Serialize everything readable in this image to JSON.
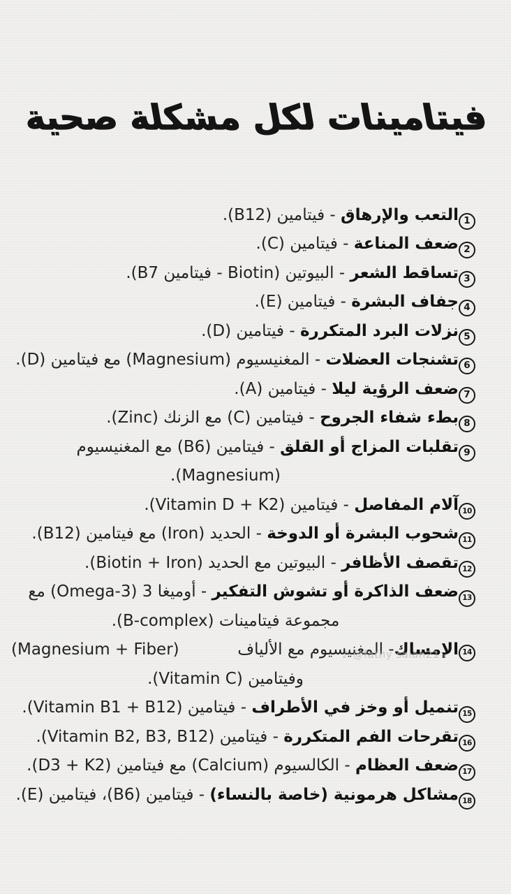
{
  "page": {
    "title": "فيتامينات لكل مشكلة صحية",
    "watermark": "♪ @fathy salah21",
    "colors": {
      "paper": "#f0efed",
      "ink": "#1a1a1a"
    }
  },
  "items": [
    {
      "n": "1",
      "lines": [
        {
          "align": "right",
          "segments": [
            {
              "bold": true,
              "text": "التعب والإرهاق"
            },
            {
              "bold": false,
              "text": " - فيتامين (B12)."
            }
          ]
        }
      ]
    },
    {
      "n": "2",
      "lines": [
        {
          "align": "right",
          "segments": [
            {
              "bold": true,
              "text": "ضعف المناعة"
            },
            {
              "bold": false,
              "text": " - فيتامين (C)."
            }
          ]
        }
      ]
    },
    {
      "n": "3",
      "lines": [
        {
          "align": "right",
          "segments": [
            {
              "bold": true,
              "text": "تساقط الشعر"
            },
            {
              "bold": false,
              "text": " - البيوتين (Biotin - فيتامين B7)."
            }
          ]
        }
      ]
    },
    {
      "n": "4",
      "lines": [
        {
          "align": "right",
          "segments": [
            {
              "bold": true,
              "text": "جفاف البشرة"
            },
            {
              "bold": false,
              "text": " - فيتامين (E)."
            }
          ]
        }
      ]
    },
    {
      "n": "5",
      "lines": [
        {
          "align": "right",
          "segments": [
            {
              "bold": true,
              "text": "نزلات البرد المتكررة"
            },
            {
              "bold": false,
              "text": " - فيتامين (D)."
            }
          ]
        }
      ]
    },
    {
      "n": "6",
      "lines": [
        {
          "align": "right",
          "segments": [
            {
              "bold": true,
              "text": "تشنجات العضلات"
            },
            {
              "bold": false,
              "text": " - المغنيسيوم (Magnesium) مع فيتامين (D)."
            }
          ]
        }
      ]
    },
    {
      "n": "7",
      "lines": [
        {
          "align": "right",
          "segments": [
            {
              "bold": true,
              "text": "ضعف الرؤية ليلا"
            },
            {
              "bold": false,
              "text": " - فيتامين (A)."
            }
          ]
        }
      ]
    },
    {
      "n": "8",
      "lines": [
        {
          "align": "right",
          "segments": [
            {
              "bold": true,
              "text": "بطء شفاء الجروح"
            },
            {
              "bold": false,
              "text": " - فيتامين (C) مع الزنك (Zinc)."
            }
          ]
        }
      ]
    },
    {
      "n": "9",
      "lines": [
        {
          "align": "right",
          "segments": [
            {
              "bold": true,
              "text": "تقلبات المزاج أو القلق"
            },
            {
              "bold": false,
              "text": " - فيتامين (B6) مع المغنيسيوم"
            }
          ]
        },
        {
          "align": "center",
          "segments": [
            {
              "bold": false,
              "text": "(Magnesium)."
            }
          ]
        }
      ]
    },
    {
      "n": "10",
      "lines": [
        {
          "align": "right",
          "segments": [
            {
              "bold": true,
              "text": "آلام المفاصل"
            },
            {
              "bold": false,
              "text": " - فيتامين (Vitamin D + K2)."
            }
          ]
        }
      ]
    },
    {
      "n": "11",
      "lines": [
        {
          "align": "right",
          "segments": [
            {
              "bold": true,
              "text": "شحوب البشرة أو الدوخة"
            },
            {
              "bold": false,
              "text": " - الحديد (Iron) مع فيتامين (B12)."
            }
          ]
        }
      ]
    },
    {
      "n": "12",
      "lines": [
        {
          "align": "right",
          "segments": [
            {
              "bold": true,
              "text": "تقصف الأظافر"
            },
            {
              "bold": false,
              "text": " - البيوتين مع الحديد (Biotin + Iron)."
            }
          ]
        }
      ]
    },
    {
      "n": "13",
      "lines": [
        {
          "align": "right",
          "segments": [
            {
              "bold": true,
              "text": "ضعف الذاكرة أو تشوش التفكير"
            },
            {
              "bold": false,
              "text": " - أوميغا 3 (Omega-3) مع"
            }
          ]
        },
        {
          "align": "center",
          "segments": [
            {
              "bold": false,
              "text": "مجموعة فيتامينات (B-complex)."
            }
          ]
        }
      ]
    },
    {
      "n": "14",
      "lines": [
        {
          "align": "justify",
          "segments": [
            {
              "bold": true,
              "text": "الإمساك"
            },
            {
              "bold": false,
              "text": " - المغنيسيوم مع الألياف"
            }
          ],
          "left": "(Magnesium + Fiber)"
        },
        {
          "align": "center",
          "segments": [
            {
              "bold": false,
              "text": "وفيتامين (Vitamin C)."
            }
          ]
        }
      ]
    },
    {
      "n": "15",
      "lines": [
        {
          "align": "right",
          "segments": [
            {
              "bold": true,
              "text": "تنميل أو وخز في الأطراف"
            },
            {
              "bold": false,
              "text": " - فيتامين (Vitamin B1 + B12)."
            }
          ]
        }
      ]
    },
    {
      "n": "16",
      "lines": [
        {
          "align": "right",
          "segments": [
            {
              "bold": true,
              "text": "تقرحات الفم المتكررة"
            },
            {
              "bold": false,
              "text": " - فيتامين (Vitamin B2, B3, B12)."
            }
          ]
        }
      ]
    },
    {
      "n": "17",
      "lines": [
        {
          "align": "right",
          "segments": [
            {
              "bold": true,
              "text": "ضعف العظام"
            },
            {
              "bold": false,
              "text": " - الكالسيوم (Calcium) مع فيتامين (D3 + K2)."
            }
          ]
        }
      ]
    },
    {
      "n": "18",
      "lines": [
        {
          "align": "right",
          "segments": [
            {
              "bold": true,
              "text": "مشاكل هرمونية (خاصة بالنساء)"
            },
            {
              "bold": false,
              "text": " - فيتامين (B6)، فيتامين (E)."
            }
          ]
        }
      ]
    }
  ]
}
